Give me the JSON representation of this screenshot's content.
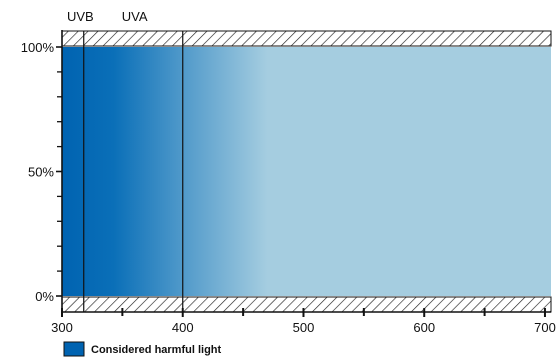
{
  "chart_data": {
    "type": "area",
    "title": "",
    "xlabel": "",
    "ylabel": "",
    "xlim": [
      300,
      705
    ],
    "ylim": [
      0,
      100
    ],
    "x_ticks": [
      300,
      400,
      500,
      600,
      700
    ],
    "y_ticks": [
      0,
      50,
      100
    ],
    "y_tick_labels": [
      "0%",
      "50%",
      "100%"
    ],
    "bands": [
      {
        "label": "UVB",
        "start": 300,
        "end": 318
      },
      {
        "label": "UVA",
        "start": 318,
        "end": 400
      }
    ],
    "gradient": {
      "from_x": 300,
      "to_x": 470,
      "from_color": "#0063b1",
      "to_color": "#a5cde0"
    },
    "fill_color": "#a5cde0",
    "hatched_regions": [
      "above-100%",
      "below-0%"
    ],
    "legend": {
      "placement": "bottom-left",
      "entries": [
        {
          "label": "Considered harmful light",
          "color": "#0063b1"
        }
      ]
    }
  }
}
